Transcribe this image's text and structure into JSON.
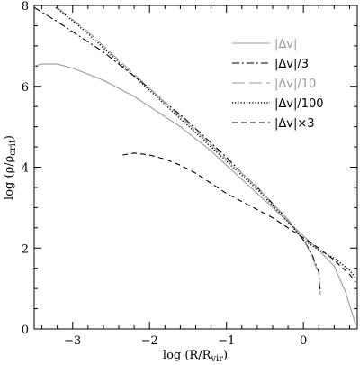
{
  "chart_data": {
    "type": "line",
    "xlabel": "log (R/R",
    "xlabel_sub": "vir",
    "xlabel_close": ")",
    "ylabel": "log (ρ/ρ",
    "ylabel_sub": "crit",
    "ylabel_close": ")",
    "xlim": [
      -3.5,
      0.7
    ],
    "ylim": [
      0,
      8
    ],
    "xticks": [
      -3,
      -2,
      -1,
      0
    ],
    "yticks": [
      0,
      2,
      4,
      6,
      8
    ],
    "xtick_labels": [
      "−3",
      "−2",
      "−1",
      "0"
    ],
    "ytick_labels": [
      "0",
      "2",
      "4",
      "6",
      "8"
    ],
    "legend_position": "top-right",
    "series": [
      {
        "name": "|Δv|",
        "color": "#9a9a9a",
        "dash": "solid",
        "x": [
          -3.5,
          -3.4,
          -3.2,
          -3.0,
          -2.8,
          -2.6,
          -2.4,
          -2.2,
          -2.0,
          -1.8,
          -1.6,
          -1.4,
          -1.2,
          -1.0,
          -0.8,
          -0.6,
          -0.4,
          -0.2,
          0.0,
          0.2,
          0.4,
          0.55,
          0.68
        ],
        "y": [
          6.5,
          6.55,
          6.55,
          6.45,
          6.3,
          6.15,
          5.95,
          5.75,
          5.5,
          5.25,
          5.0,
          4.7,
          4.4,
          4.05,
          3.7,
          3.35,
          3.0,
          2.65,
          2.3,
          1.95,
          1.55,
          0.9,
          0.1
        ]
      },
      {
        "name": "|Δv|/3",
        "color": "#000000",
        "dash": "dashdot",
        "x": [
          -3.5,
          -3.2,
          -3.0,
          -2.8,
          -2.6,
          -2.4,
          -2.2,
          -2.0,
          -1.8,
          -1.6,
          -1.4,
          -1.2,
          -1.0,
          -0.8,
          -0.6,
          -0.4,
          -0.2,
          0.0,
          0.1,
          0.2,
          0.22
        ],
        "y": [
          7.95,
          7.6,
          7.35,
          7.1,
          6.85,
          6.55,
          6.25,
          5.95,
          5.6,
          5.3,
          4.95,
          4.6,
          4.25,
          3.85,
          3.5,
          3.1,
          2.7,
          2.2,
          1.9,
          1.4,
          0.9
        ]
      },
      {
        "name": "|Δv|/10",
        "color": "#9a9a9a",
        "dash": "longdash",
        "x": [
          -3.2,
          -3.0,
          -2.8,
          -2.6,
          -2.4,
          -2.2,
          -2.0,
          -1.8,
          -1.6,
          -1.4,
          -1.2,
          -1.0,
          -0.8,
          -0.6,
          -0.4,
          -0.2,
          0.0,
          0.1,
          0.2,
          0.22
        ],
        "y": [
          7.95,
          7.65,
          7.35,
          7.0,
          6.65,
          6.3,
          5.95,
          5.6,
          5.25,
          4.9,
          4.55,
          4.2,
          3.85,
          3.5,
          3.1,
          2.7,
          2.2,
          1.85,
          1.35,
          0.85
        ]
      },
      {
        "name": "|Δv|/100",
        "color": "#000000",
        "dash": "dotted",
        "x": [
          -3.22,
          -3.0,
          -2.8,
          -2.6,
          -2.4,
          -2.2,
          -2.0,
          -1.8,
          -1.6,
          -1.4,
          -1.2,
          -1.0,
          -0.8,
          -0.6,
          -0.4,
          -0.2,
          0.0,
          0.2,
          0.4,
          0.6,
          0.68
        ],
        "y": [
          7.95,
          7.62,
          7.3,
          6.95,
          6.6,
          6.25,
          5.9,
          5.55,
          5.2,
          4.85,
          4.5,
          4.15,
          3.8,
          3.45,
          3.05,
          2.65,
          2.2,
          1.95,
          1.75,
          1.45,
          1.25
        ]
      },
      {
        "name": "|Δv|×3",
        "color": "#000000",
        "dash": "dashed",
        "x": [
          -2.35,
          -2.2,
          -2.0,
          -1.8,
          -1.6,
          -1.4,
          -1.2,
          -1.0,
          -0.8,
          -0.6,
          -0.4,
          -0.2,
          0.0,
          0.2,
          0.4,
          0.6,
          0.68
        ],
        "y": [
          4.3,
          4.35,
          4.3,
          4.2,
          4.05,
          3.85,
          3.6,
          3.35,
          3.15,
          2.95,
          2.75,
          2.5,
          2.25,
          2.0,
          1.7,
          1.35,
          1.15
        ]
      }
    ]
  }
}
